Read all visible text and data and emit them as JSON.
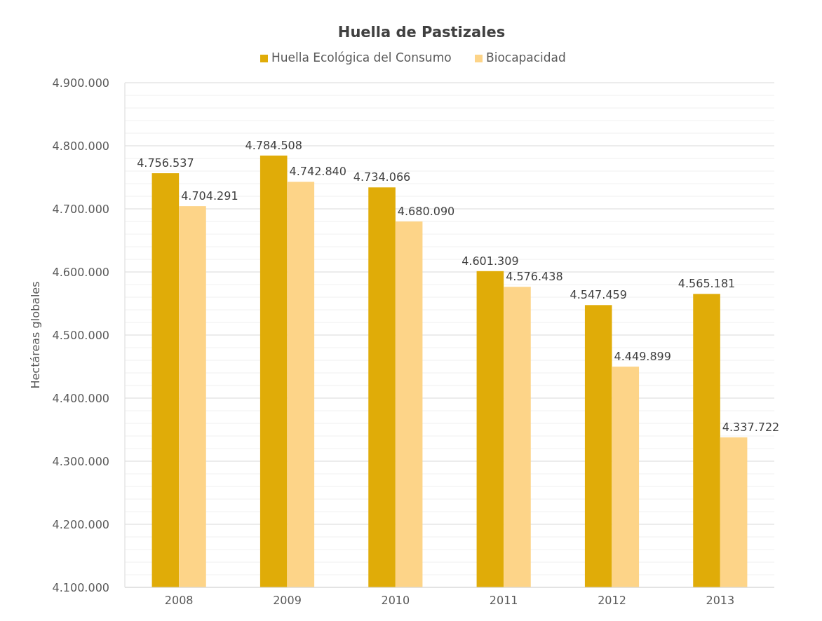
{
  "chart_data": {
    "type": "bar",
    "title": "Huella de Pastizales",
    "ylabel": "Hectáreas globales",
    "categories": [
      "2008",
      "2009",
      "2010",
      "2011",
      "2012",
      "2013"
    ],
    "series": [
      {
        "name": "Huella Ecológica del Consumo",
        "color": "#e0ac08",
        "values": [
          4756537,
          4784508,
          4734066,
          4601309,
          4547459,
          4565181
        ],
        "value_labels": [
          "4.756.537",
          "4.784.508",
          "4.734.066",
          "4.601.309",
          "4.547.459",
          "4.565.181"
        ]
      },
      {
        "name": "Biocapacidad",
        "color": "#fdd488",
        "values": [
          4704291,
          4742840,
          4680090,
          4576438,
          4449899,
          4337722
        ],
        "value_labels": [
          "4.704.291",
          "4.742.840",
          "4.680.090",
          "4.576.438",
          "4.449.899",
          "4.337.722"
        ]
      }
    ],
    "ylim": [
      4100000,
      4900000
    ],
    "yticks": [
      {
        "value": 4100000,
        "label": "4.100.000"
      },
      {
        "value": 4120000,
        "label": null
      },
      {
        "value": 4140000,
        "label": null
      },
      {
        "value": 4160000,
        "label": null
      },
      {
        "value": 4180000,
        "label": null
      },
      {
        "value": 4200000,
        "label": "4.200.000"
      },
      {
        "value": 4220000,
        "label": null
      },
      {
        "value": 4240000,
        "label": null
      },
      {
        "value": 4260000,
        "label": null
      },
      {
        "value": 4280000,
        "label": null
      },
      {
        "value": 4300000,
        "label": "4.300.000"
      },
      {
        "value": 4320000,
        "label": null
      },
      {
        "value": 4340000,
        "label": null
      },
      {
        "value": 4360000,
        "label": null
      },
      {
        "value": 4380000,
        "label": null
      },
      {
        "value": 4400000,
        "label": "4.400.000"
      },
      {
        "value": 4420000,
        "label": null
      },
      {
        "value": 4440000,
        "label": null
      },
      {
        "value": 4460000,
        "label": null
      },
      {
        "value": 4480000,
        "label": null
      },
      {
        "value": 4500000,
        "label": "4.500.000"
      },
      {
        "value": 4520000,
        "label": null
      },
      {
        "value": 4540000,
        "label": null
      },
      {
        "value": 4560000,
        "label": null
      },
      {
        "value": 4580000,
        "label": null
      },
      {
        "value": 4600000,
        "label": "4.600.000"
      },
      {
        "value": 4620000,
        "label": null
      },
      {
        "value": 4640000,
        "label": null
      },
      {
        "value": 4660000,
        "label": null
      },
      {
        "value": 4680000,
        "label": null
      },
      {
        "value": 4700000,
        "label": "4.700.000"
      },
      {
        "value": 4720000,
        "label": null
      },
      {
        "value": 4740000,
        "label": null
      },
      {
        "value": 4760000,
        "label": null
      },
      {
        "value": 4780000,
        "label": null
      },
      {
        "value": 4800000,
        "label": "4.800.000"
      },
      {
        "value": 4820000,
        "label": null
      },
      {
        "value": 4840000,
        "label": null
      },
      {
        "value": 4860000,
        "label": null
      },
      {
        "value": 4880000,
        "label": null
      },
      {
        "value": 4900000,
        "label": "4.900.000"
      }
    ],
    "grid": true,
    "legend": "top"
  }
}
